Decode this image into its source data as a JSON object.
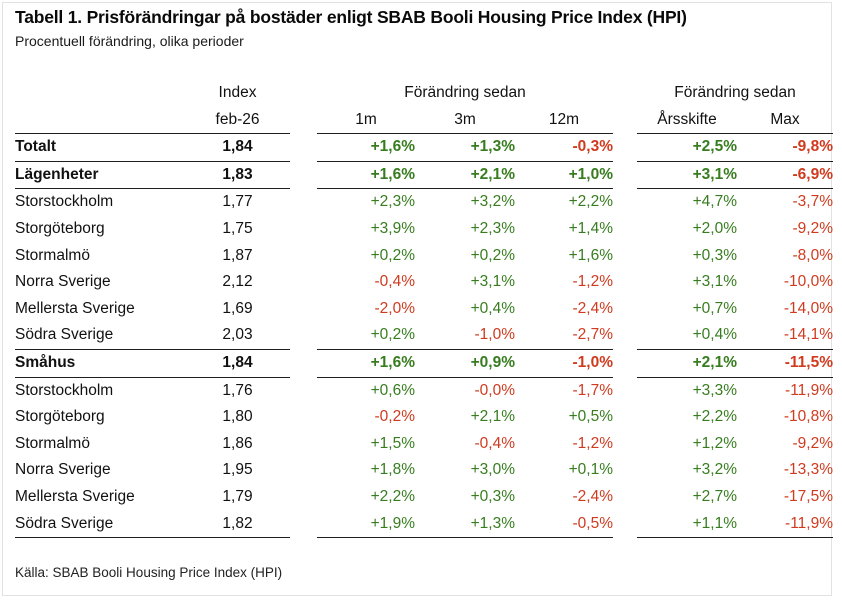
{
  "colors": {
    "positive": "#377D1F",
    "negative": "#D03A1E",
    "text": "#111111",
    "rule": "#1F1F1F"
  },
  "chart_data": {
    "type": "table",
    "title": "Tabell 1. Prisförändringar på bostäder enligt SBAB Booli Housing Price Index (HPI)",
    "subtitle": "Procentuell förändring, olika perioder",
    "source": "Källa: SBAB Booli Housing Price Index (HPI)",
    "header": {
      "index_label": "Index",
      "index_sub": "feb-26",
      "group1": "Förändring sedan",
      "group2": "Förändring sedan",
      "period_cols": [
        "1m",
        "3m",
        "12m"
      ],
      "since_cols": [
        "Årsskifte",
        "Max"
      ]
    },
    "value_columns": [
      "1m",
      "3m",
      "12m",
      "Årsskifte",
      "Max"
    ],
    "rows": [
      {
        "label": "Totalt",
        "bold": true,
        "rule": true,
        "index": "1,84",
        "values": [
          "+1,6%",
          "+1,3%",
          "-0,3%",
          "+2,5%",
          "-9,8%"
        ]
      },
      {
        "label": "Lägenheter",
        "bold": true,
        "rule": true,
        "index": "1,83",
        "values": [
          "+1,6%",
          "+2,1%",
          "+1,0%",
          "+3,1%",
          "-6,9%"
        ]
      },
      {
        "label": "Storstockholm",
        "bold": false,
        "rule": false,
        "index": "1,77",
        "values": [
          "+2,3%",
          "+3,2%",
          "+2,2%",
          "+4,7%",
          "-3,7%"
        ]
      },
      {
        "label": "Storgöteborg",
        "bold": false,
        "rule": false,
        "index": "1,75",
        "values": [
          "+3,9%",
          "+2,3%",
          "+1,4%",
          "+2,0%",
          "-9,2%"
        ]
      },
      {
        "label": "Stormalmö",
        "bold": false,
        "rule": false,
        "index": "1,87",
        "values": [
          "+0,2%",
          "+0,2%",
          "+1,6%",
          "+0,3%",
          "-8,0%"
        ]
      },
      {
        "label": "Norra Sverige",
        "bold": false,
        "rule": false,
        "index": "2,12",
        "values": [
          "-0,4%",
          "+3,1%",
          "-1,2%",
          "+3,1%",
          "-10,0%"
        ]
      },
      {
        "label": "Mellersta Sverige",
        "bold": false,
        "rule": false,
        "index": "1,69",
        "values": [
          "-2,0%",
          "+0,4%",
          "-2,4%",
          "+0,7%",
          "-14,0%"
        ]
      },
      {
        "label": "Södra Sverige",
        "bold": false,
        "rule": true,
        "index": "2,03",
        "values": [
          "+0,2%",
          "-1,0%",
          "-2,7%",
          "+0,4%",
          "-14,1%"
        ]
      },
      {
        "label": "Småhus",
        "bold": true,
        "rule": true,
        "index": "1,84",
        "values": [
          "+1,6%",
          "+0,9%",
          "-1,0%",
          "+2,1%",
          "-11,5%"
        ]
      },
      {
        "label": "Storstockholm",
        "bold": false,
        "rule": false,
        "index": "1,76",
        "values": [
          "+0,6%",
          "-0,0%",
          "-1,7%",
          "+3,3%",
          "-11,9%"
        ]
      },
      {
        "label": "Storgöteborg",
        "bold": false,
        "rule": false,
        "index": "1,80",
        "values": [
          "-0,2%",
          "+2,1%",
          "+0,5%",
          "+2,2%",
          "-10,8%"
        ]
      },
      {
        "label": "Stormalmö",
        "bold": false,
        "rule": false,
        "index": "1,86",
        "values": [
          "+1,5%",
          "-0,4%",
          "-1,2%",
          "+1,2%",
          "-9,2%"
        ]
      },
      {
        "label": "Norra Sverige",
        "bold": false,
        "rule": false,
        "index": "1,95",
        "values": [
          "+1,8%",
          "+3,0%",
          "+0,1%",
          "+3,2%",
          "-13,3%"
        ]
      },
      {
        "label": "Mellersta Sverige",
        "bold": false,
        "rule": false,
        "index": "1,79",
        "values": [
          "+2,2%",
          "+0,3%",
          "-2,4%",
          "+2,7%",
          "-17,5%"
        ]
      },
      {
        "label": "Södra Sverige",
        "bold": false,
        "rule": true,
        "index": "1,82",
        "values": [
          "+1,9%",
          "+1,3%",
          "-0,5%",
          "+1,1%",
          "-11,9%"
        ]
      }
    ]
  }
}
